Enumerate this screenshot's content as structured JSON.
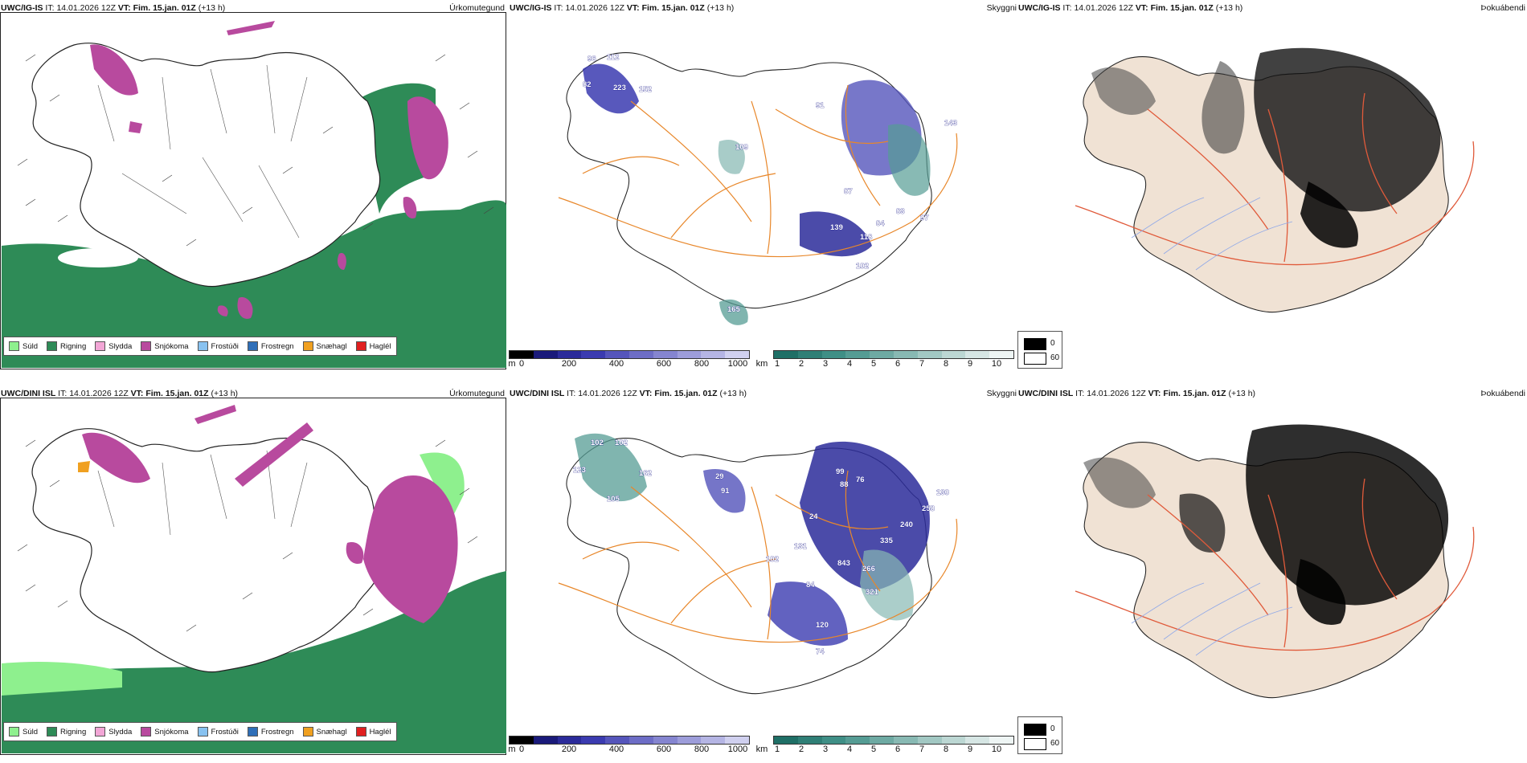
{
  "rows": [
    {
      "model": "UWC/IG-IS",
      "it_label": "IT:",
      "it_value": "14.01.2026 12Z",
      "vt_label": "VT:",
      "vt_value": "Fim. 15.jan. 01Z",
      "lead": "(+13 h)"
    },
    {
      "model": "UWC/DINI ISL",
      "it_label": "IT:",
      "it_value": "14.01.2026 12Z",
      "vt_label": "VT:",
      "vt_value": "Fim. 15.jan. 01Z",
      "lead": "(+13 h)"
    }
  ],
  "panel_titles": {
    "precip": "Úrkomutegund",
    "cloud": "Skyggni",
    "fog": "Þokuábendi"
  },
  "precip_legend": [
    {
      "label": "Súld",
      "color": "#8ef08e"
    },
    {
      "label": "Rigning",
      "color": "#2e8b57"
    },
    {
      "label": "Slydda",
      "color": "#f2a6d6"
    },
    {
      "label": "Snjókoma",
      "color": "#b84a9e"
    },
    {
      "label": "Frostúði",
      "color": "#88c2f0"
    },
    {
      "label": "Frostregn",
      "color": "#2f6fb8"
    },
    {
      "label": "Snæhagl",
      "color": "#f0a020"
    },
    {
      "label": "Haglél",
      "color": "#e02020"
    }
  ],
  "cloud_base_scale": {
    "unit": "m",
    "ticks": [
      "0",
      "200",
      "400",
      "600",
      "800",
      "1000"
    ],
    "colors": [
      "#000000",
      "#1a1a7a",
      "#2b2b9a",
      "#3b3bb0",
      "#5555bb",
      "#6d6dc6",
      "#8585d0",
      "#9d9dda",
      "#b5b5e4",
      "#d0d0ef"
    ]
  },
  "visibility_scale": {
    "unit": "km",
    "ticks": [
      "1",
      "2",
      "3",
      "4",
      "5",
      "6",
      "7",
      "8",
      "9",
      "10"
    ],
    "colors": [
      "#1f6f66",
      "#2f7f76",
      "#3f8f86",
      "#559c94",
      "#6eaaa3",
      "#88b9b3",
      "#a2c8c3",
      "#bcd7d3",
      "#d6e6e4",
      "#eef5f4"
    ]
  },
  "fog_scale": {
    "high": "0",
    "low": "60"
  },
  "cloud_labels_top": [
    "96",
    "112",
    "82",
    "223",
    "152",
    "91",
    "109",
    "84",
    "83",
    "87",
    "139",
    "118",
    "102",
    "165",
    "97",
    "143"
  ],
  "cloud_labels_bottom": [
    "102",
    "102",
    "123",
    "162",
    "29",
    "91",
    "105",
    "99",
    "76",
    "88",
    "24",
    "131",
    "102",
    "84",
    "843",
    "266",
    "335",
    "240",
    "258",
    "321",
    "120",
    "74",
    "130"
  ],
  "colors": {
    "land_outline": "#222222",
    "roads": "#e8872a",
    "fog_land": "#f0e2d4",
    "fog_roads": "#e05a3a",
    "fog_rivers": "#8fa8e8"
  }
}
